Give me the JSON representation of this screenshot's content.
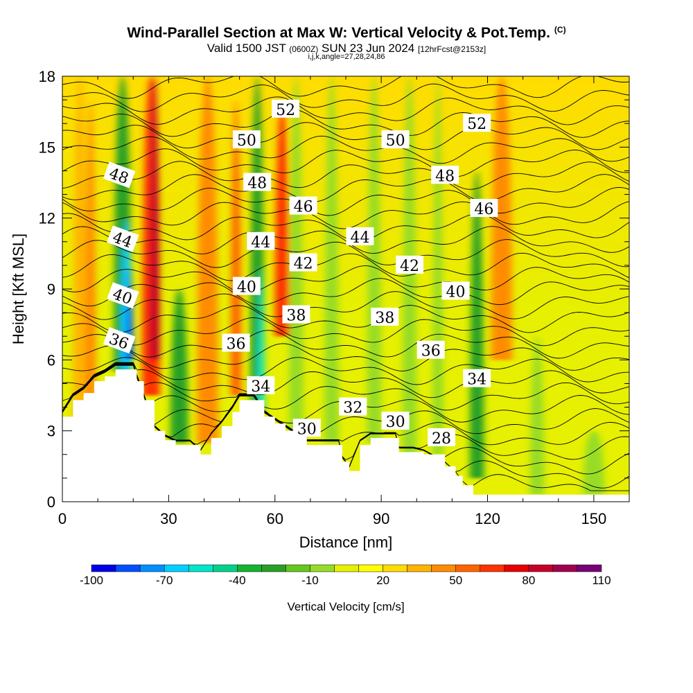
{
  "header": {
    "title": "Wind-Parallel Section at Max W: Vertical Velocity & Pot.Temp.",
    "copyright": "(C)",
    "subtitle_a": "Valid 1500 JST",
    "subtitle_z": "(0600Z)",
    "subtitle_b": "SUN 23 Jun 2024",
    "subtitle_c": "[12hrFcst@2153z]",
    "subtitle2": "i,j,k,angle=27,28,24,86"
  },
  "chart_data": {
    "type": "heatmap",
    "title": "Wind-Parallel Section at Max W: Vertical Velocity & Pot.Temp.",
    "xlabel": "Distance [nm]",
    "ylabel": "Height [Kft MSL]",
    "xlim": [
      0,
      160
    ],
    "ylim": [
      0,
      18
    ],
    "x_ticks": [
      "0",
      "30",
      "60",
      "90",
      "120",
      "150"
    ],
    "y_ticks": [
      "0",
      "3",
      "6",
      "9",
      "12",
      "15",
      "18"
    ],
    "colorbar": {
      "label": "Vertical Velocity [cm/s]",
      "tick_labels": [
        "-100",
        "-70",
        "-40",
        "-10",
        "20",
        "50",
        "80",
        "110"
      ],
      "colors": [
        "#0000e6",
        "#0050ff",
        "#0090ff",
        "#00d0ff",
        "#00e6c8",
        "#00d28c",
        "#14b432",
        "#28a028",
        "#64c81e",
        "#96dc28",
        "#e6f000",
        "#ffff00",
        "#ffdc00",
        "#ffb400",
        "#ff8c00",
        "#ff6400",
        "#ff3200",
        "#e60000",
        "#c80028",
        "#a00050",
        "#780078"
      ]
    },
    "terrain_profile": [
      [
        0,
        3.6
      ],
      [
        3,
        4.3
      ],
      [
        6,
        4.6
      ],
      [
        9,
        5.1
      ],
      [
        12,
        5.3
      ],
      [
        15,
        5.6
      ],
      [
        20,
        5.6
      ],
      [
        21,
        5.1
      ],
      [
        23,
        4.3
      ],
      [
        26,
        3.0
      ],
      [
        29,
        2.6
      ],
      [
        32,
        2.4
      ],
      [
        36,
        2.4
      ],
      [
        39,
        2.0
      ],
      [
        42,
        2.7
      ],
      [
        45,
        3.2
      ],
      [
        48,
        3.8
      ],
      [
        50,
        4.3
      ],
      [
        54,
        4.3
      ],
      [
        57,
        3.6
      ],
      [
        60,
        3.3
      ],
      [
        63,
        3.0
      ],
      [
        69,
        2.4
      ],
      [
        72,
        2.4
      ],
      [
        78,
        2.4
      ],
      [
        79,
        1.7
      ],
      [
        81,
        1.3
      ],
      [
        84,
        2.4
      ],
      [
        87,
        2.7
      ],
      [
        94,
        2.7
      ],
      [
        95,
        2.1
      ],
      [
        99,
        2.1
      ],
      [
        102,
        2.0
      ],
      [
        108,
        1.5
      ],
      [
        111,
        1.1
      ],
      [
        113,
        0.7
      ],
      [
        116,
        0.3
      ],
      [
        158,
        0.3
      ]
    ],
    "theta_contours": [
      28,
      30,
      32,
      34,
      36,
      38,
      40,
      42,
      44,
      46,
      48,
      50,
      52
    ],
    "contour_labels": [
      {
        "text": "52",
        "x": 63,
        "y": 16.6
      },
      {
        "text": "52",
        "x": 117,
        "y": 16.0
      },
      {
        "text": "50",
        "x": 52,
        "y": 15.3
      },
      {
        "text": "50",
        "x": 94,
        "y": 15.3
      },
      {
        "text": "48",
        "x": 16,
        "y": 13.8
      },
      {
        "text": "48",
        "x": 55,
        "y": 13.5
      },
      {
        "text": "48",
        "x": 108,
        "y": 13.8
      },
      {
        "text": "46",
        "x": 68,
        "y": 12.5
      },
      {
        "text": "46",
        "x": 119,
        "y": 12.4
      },
      {
        "text": "44",
        "x": 17,
        "y": 11.1
      },
      {
        "text": "44",
        "x": 56,
        "y": 11.0
      },
      {
        "text": "44",
        "x": 84,
        "y": 11.2
      },
      {
        "text": "42",
        "x": 68,
        "y": 10.1
      },
      {
        "text": "42",
        "x": 98,
        "y": 10.0
      },
      {
        "text": "40",
        "x": 17,
        "y": 8.7
      },
      {
        "text": "40",
        "x": 52,
        "y": 9.1
      },
      {
        "text": "40",
        "x": 111,
        "y": 8.9
      },
      {
        "text": "38",
        "x": 66,
        "y": 7.9
      },
      {
        "text": "38",
        "x": 91,
        "y": 7.8
      },
      {
        "text": "36",
        "x": 16,
        "y": 6.8
      },
      {
        "text": "36",
        "x": 49,
        "y": 6.7
      },
      {
        "text": "36",
        "x": 104,
        "y": 6.4
      },
      {
        "text": "34",
        "x": 56,
        "y": 4.9
      },
      {
        "text": "34",
        "x": 117,
        "y": 5.2
      },
      {
        "text": "32",
        "x": 82,
        "y": 4.0
      },
      {
        "text": "30",
        "x": 69,
        "y": 3.1
      },
      {
        "text": "30",
        "x": 94,
        "y": 3.4
      },
      {
        "text": "28",
        "x": 107,
        "y": 2.7
      }
    ],
    "w_field": {
      "background": "#e6f000",
      "upper_base": "#ffdc00",
      "streaks": [
        {
          "x": 5,
          "y_bottom": 3.5,
          "y_top": 18,
          "width": 4,
          "color": "#ffb400"
        },
        {
          "x": 8,
          "y_bottom": 4.5,
          "y_top": 17,
          "width": 3,
          "color": "#ff8c00"
        },
        {
          "x": 17,
          "y_bottom": 5.5,
          "y_top": 18,
          "width": 5,
          "color": "#28a028"
        },
        {
          "x": 18,
          "y_bottom": 5.6,
          "y_top": 12,
          "width": 3,
          "color": "#00d0ff"
        },
        {
          "x": 19,
          "y_bottom": 6.0,
          "y_top": 10,
          "width": 2,
          "color": "#0050ff"
        },
        {
          "x": 25,
          "y_bottom": 4.5,
          "y_top": 18,
          "width": 5,
          "color": "#ff3200"
        },
        {
          "x": 26,
          "y_bottom": 6.0,
          "y_top": 18,
          "width": 3,
          "color": "#c80028"
        },
        {
          "x": 33,
          "y_bottom": 2.5,
          "y_top": 9,
          "width": 5,
          "color": "#28a028"
        },
        {
          "x": 41,
          "y_bottom": 2.5,
          "y_top": 18,
          "width": 6,
          "color": "#ff8c00"
        },
        {
          "x": 49,
          "y_bottom": 4.5,
          "y_top": 17,
          "width": 3,
          "color": "#ff6400"
        },
        {
          "x": 55,
          "y_bottom": 3.8,
          "y_top": 18,
          "width": 4,
          "color": "#28a028"
        },
        {
          "x": 56,
          "y_bottom": 4.0,
          "y_top": 10,
          "width": 2,
          "color": "#00e6c8"
        },
        {
          "x": 62,
          "y_bottom": 7.0,
          "y_top": 17,
          "width": 4,
          "color": "#ff3200"
        },
        {
          "x": 66,
          "y_bottom": 2.5,
          "y_top": 18,
          "width": 4,
          "color": "#96dc28"
        },
        {
          "x": 76,
          "y_bottom": 2.5,
          "y_top": 18,
          "width": 4,
          "color": "#96dc28"
        },
        {
          "x": 88,
          "y_bottom": 2.5,
          "y_top": 18,
          "width": 4,
          "color": "#96dc28"
        },
        {
          "x": 98,
          "y_bottom": 2.0,
          "y_top": 18,
          "width": 4,
          "color": "#96dc28"
        },
        {
          "x": 106,
          "y_bottom": 2.0,
          "y_top": 18,
          "width": 3,
          "color": "#96dc28"
        },
        {
          "x": 117,
          "y_bottom": 1.0,
          "y_top": 14,
          "width": 4,
          "color": "#28a028"
        },
        {
          "x": 124,
          "y_bottom": 6.0,
          "y_top": 18,
          "width": 6,
          "color": "#ff8c00"
        },
        {
          "x": 134,
          "y_bottom": 0.3,
          "y_top": 7,
          "width": 4,
          "color": "#96dc28"
        },
        {
          "x": 150,
          "y_bottom": 0.3,
          "y_top": 3,
          "width": 6,
          "color": "#96dc28"
        }
      ]
    }
  }
}
